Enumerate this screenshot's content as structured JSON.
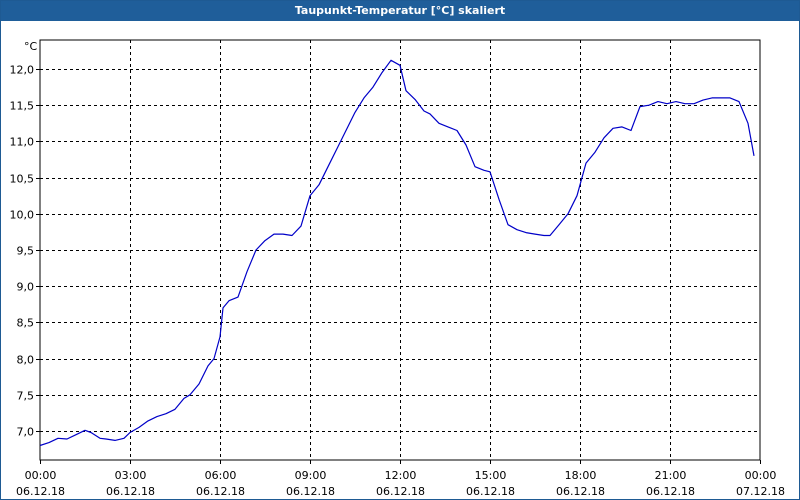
{
  "window": {
    "title": "Taupunkt-Temperatur [°C] skaliert"
  },
  "chart_data": {
    "type": "line",
    "title": "Taupunkt-Temperatur [°C] skaliert",
    "ylabel": "°C",
    "xlabel": "",
    "ylim": [
      6.6,
      12.4
    ],
    "xlim": [
      0,
      24
    ],
    "grid": true,
    "yticks": [
      "7,0",
      "7,5",
      "8,0",
      "8,5",
      "9,0",
      "9,5",
      "10,0",
      "10,5",
      "11,0",
      "11,5",
      "12,0"
    ],
    "ytick_values": [
      7.0,
      7.5,
      8.0,
      8.5,
      9.0,
      9.5,
      10.0,
      10.5,
      11.0,
      11.5,
      12.0
    ],
    "xticks": [
      {
        "time": "00:00",
        "date": "06.12.18",
        "hour": 0
      },
      {
        "time": "03:00",
        "date": "06.12.18",
        "hour": 3
      },
      {
        "time": "06:00",
        "date": "06.12.18",
        "hour": 6
      },
      {
        "time": "09:00",
        "date": "06.12.18",
        "hour": 9
      },
      {
        "time": "12:00",
        "date": "06.12.18",
        "hour": 12
      },
      {
        "time": "15:00",
        "date": "06.12.18",
        "hour": 15
      },
      {
        "time": "18:00",
        "date": "06.12.18",
        "hour": 18
      },
      {
        "time": "21:00",
        "date": "06.12.18",
        "hour": 21
      },
      {
        "time": "00:00",
        "date": "07.12.18",
        "hour": 24
      }
    ],
    "series": [
      {
        "color": "#0000c8",
        "x": [
          0,
          0.3,
          0.6,
          0.9,
          1.2,
          1.5,
          1.7,
          2.0,
          2.2,
          2.5,
          2.8,
          3.0,
          3.3,
          3.6,
          3.9,
          4.2,
          4.5,
          4.8,
          5.0,
          5.3,
          5.6,
          5.8,
          6.0,
          6.1,
          6.3,
          6.6,
          6.9,
          7.2,
          7.5,
          7.8,
          8.1,
          8.4,
          8.7,
          9.0,
          9.3,
          9.6,
          9.9,
          10.2,
          10.5,
          10.8,
          11.1,
          11.4,
          11.7,
          12.0,
          12.2,
          12.5,
          12.8,
          13.0,
          13.3,
          13.6,
          13.9,
          14.2,
          14.5,
          14.8,
          15.0,
          15.3,
          15.6,
          15.9,
          16.2,
          16.5,
          16.8,
          17.0,
          17.3,
          17.6,
          17.9,
          18.2,
          18.5,
          18.8,
          19.1,
          19.4,
          19.7,
          20.0,
          20.3,
          20.6,
          20.9,
          21.2,
          21.5,
          21.8,
          22.1,
          22.4,
          22.7,
          23.0,
          23.3,
          23.6,
          23.8
        ],
        "y": [
          6.8,
          6.84,
          6.9,
          6.89,
          6.95,
          7.01,
          6.98,
          6.9,
          6.89,
          6.87,
          6.9,
          6.98,
          7.05,
          7.14,
          7.2,
          7.24,
          7.3,
          7.45,
          7.5,
          7.65,
          7.9,
          8.0,
          8.3,
          8.7,
          8.8,
          8.85,
          9.2,
          9.5,
          9.63,
          9.72,
          9.72,
          9.7,
          9.83,
          10.25,
          10.4,
          10.65,
          10.9,
          11.15,
          11.4,
          11.6,
          11.75,
          11.95,
          12.12,
          12.05,
          11.7,
          11.58,
          11.42,
          11.38,
          11.25,
          11.2,
          11.15,
          10.95,
          10.65,
          10.6,
          10.58,
          10.2,
          9.85,
          9.78,
          9.74,
          9.72,
          9.7,
          9.7,
          9.85,
          10.0,
          10.25,
          10.7,
          10.85,
          11.05,
          11.18,
          11.2,
          11.15,
          11.48,
          11.5,
          11.55,
          11.52,
          11.55,
          11.52,
          11.52,
          11.57,
          11.6,
          11.6,
          11.6,
          11.55,
          11.25,
          10.8
        ]
      }
    ]
  }
}
